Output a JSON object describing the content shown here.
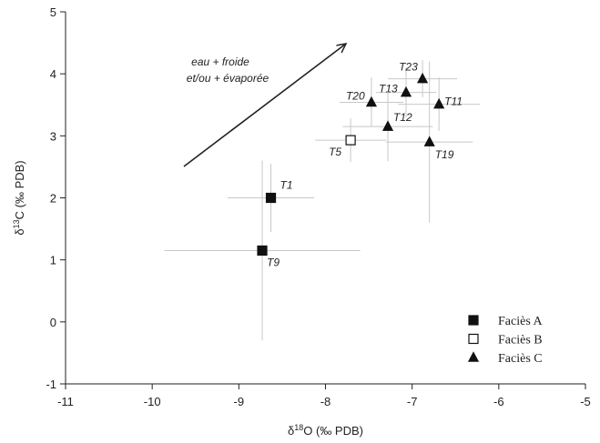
{
  "chart_data": {
    "type": "scatter",
    "xlabel": [
      "δ",
      "18",
      "O (‰ PDB)"
    ],
    "ylabel": [
      "δ",
      "13",
      "C (‰ PDB)"
    ],
    "annotation": [
      "eau + froide",
      "et/ou + évaporée"
    ],
    "xlim": [
      -11,
      -5
    ],
    "xticks": [
      -11,
      -10,
      -9,
      -8,
      -7,
      -6,
      -5
    ],
    "ylim": [
      -1,
      5
    ],
    "yticks": [
      -1,
      0,
      1,
      2,
      3,
      4,
      5
    ],
    "legend": "lower right",
    "series": [
      {
        "name": "Faciès A",
        "marker": "square",
        "filled": true,
        "color": "#111111",
        "labels": [
          "T1",
          "T9"
        ],
        "x": [
          -8.63,
          -8.73
        ],
        "values": [
          2.0,
          1.15
        ],
        "xerr": [
          0.5,
          1.13
        ],
        "yerr": [
          0.55,
          1.45
        ]
      },
      {
        "name": "Faciès B",
        "marker": "square",
        "filled": false,
        "color": "#111111",
        "labels": [
          "T5"
        ],
        "x": [
          -7.71
        ],
        "values": [
          2.93
        ],
        "xerr": [
          0.41
        ],
        "yerr": [
          0.35
        ]
      },
      {
        "name": "Faciès C",
        "marker": "triangle",
        "filled": true,
        "color": "#111111",
        "labels": [
          "T20",
          "T13",
          "T23",
          "T11",
          "T12",
          "T19"
        ],
        "x": [
          -7.47,
          -7.07,
          -6.88,
          -6.69,
          -7.28,
          -6.8
        ],
        "values": [
          3.54,
          3.7,
          3.92,
          3.51,
          3.15,
          2.9
        ],
        "xerr": [
          0.37,
          0.35,
          0.4,
          0.47,
          0.52,
          0.5
        ],
        "yerr": [
          0.4,
          0.4,
          0.3,
          0.43,
          0.56,
          1.3
        ]
      }
    ]
  }
}
